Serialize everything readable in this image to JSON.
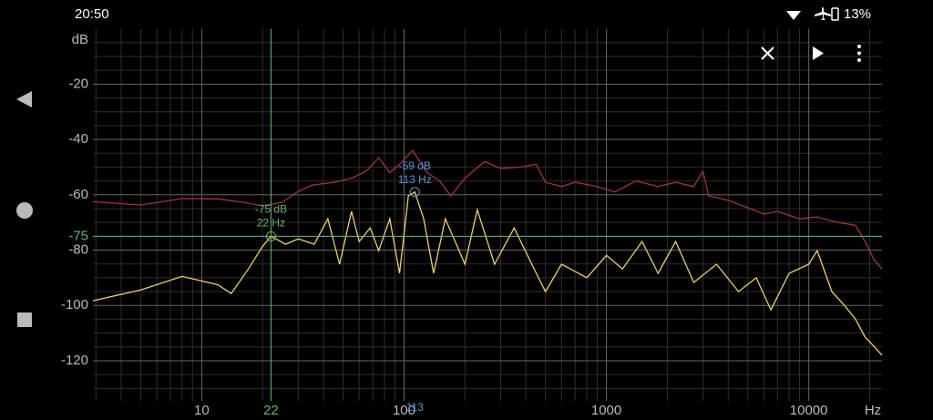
{
  "status_bar": {
    "time": "20:50",
    "battery": "13%"
  },
  "chart_data": {
    "type": "line",
    "log_x": true,
    "grid": true,
    "y_unit": "dB",
    "x_unit": "Hz",
    "xlim": [
      2.9,
      23000
    ],
    "ylim": [
      -134.5,
      0
    ],
    "xticks": [
      10,
      100,
      1000,
      10000
    ],
    "yticks": [
      -20,
      -40,
      -60,
      -80,
      -100,
      -120
    ],
    "xminor": [
      3,
      4,
      5,
      6,
      7,
      8,
      9,
      20,
      30,
      40,
      50,
      60,
      70,
      80,
      90,
      200,
      300,
      400,
      500,
      600,
      700,
      800,
      900,
      2000,
      3000,
      4000,
      5000,
      6000,
      7000,
      8000,
      9000,
      20000
    ],
    "yminor": [
      -5,
      -10,
      -15,
      -25,
      -30,
      -35,
      -45,
      -50,
      -55,
      -65,
      -70,
      -75,
      -85,
      -90,
      -95,
      -105,
      -110,
      -115,
      -125,
      -130
    ],
    "series": [
      {
        "color": "#a8303e",
        "x": [
          2.9,
          5,
          8,
          12,
          16,
          20,
          25,
          30,
          35,
          45,
          55,
          65,
          75,
          85,
          95,
          110,
          130,
          150,
          170,
          200,
          250,
          300,
          380,
          450,
          500,
          600,
          700,
          900,
          1100,
          1400,
          1800,
          2200,
          2700,
          3000,
          3200,
          4000,
          5000,
          6000,
          7000,
          9000,
          11000,
          14000,
          17000,
          19000,
          21000,
          23000
        ],
        "values": [
          -62.5,
          -63.7,
          -61.4,
          -61.5,
          -62.7,
          -64,
          -62.7,
          -58.8,
          -56.5,
          -55.5,
          -54,
          -51.5,
          -46.6,
          -52,
          -49,
          -44,
          -52,
          -55,
          -60.4,
          -54,
          -48,
          -50.5,
          -50,
          -49,
          -55.5,
          -57,
          -55.5,
          -57,
          -59,
          -55,
          -57,
          -55.5,
          -57,
          -51.5,
          -60.4,
          -62,
          -64.7,
          -67,
          -66,
          -68.7,
          -68,
          -70,
          -71,
          -76.9,
          -83.5,
          -86.8
        ]
      },
      {
        "color": "#f0d060",
        "x": [
          2.9,
          5,
          8,
          12,
          14,
          17,
          20,
          22,
          26,
          30,
          36,
          42,
          48,
          55,
          60,
          68,
          75,
          85,
          95,
          105,
          113,
          125,
          140,
          160,
          200,
          230,
          280,
          350,
          450,
          500,
          600,
          800,
          1000,
          1200,
          1500,
          1800,
          2200,
          2700,
          3500,
          4500,
          5500,
          6500,
          8000,
          10000,
          11000,
          13000,
          15000,
          17000,
          19000,
          21000,
          23000
        ],
        "values": [
          -98.3,
          -94.4,
          -89.5,
          -92.5,
          -95.7,
          -86.8,
          -78.6,
          -75,
          -77.9,
          -75.9,
          -77.9,
          -68.7,
          -85.1,
          -66,
          -76.9,
          -72,
          -80.2,
          -68.7,
          -88.4,
          -60.4,
          -59,
          -68.7,
          -88.4,
          -68.7,
          -85.1,
          -65.4,
          -85.1,
          -72,
          -88.4,
          -95,
          -85.1,
          -90,
          -81.9,
          -86.8,
          -76.9,
          -88.4,
          -76.9,
          -91.7,
          -85.1,
          -95,
          -90,
          -101.6,
          -88.4,
          -85.1,
          -80.2,
          -95,
          -100,
          -104.9,
          -111.5,
          -114.8,
          -118
        ]
      }
    ],
    "cursor": {
      "x": 22,
      "y": -75,
      "color": "#62b870",
      "lines": [
        "-75 dB",
        "22 Hz"
      ]
    },
    "peak": {
      "x": 113,
      "y": -59,
      "color": "#5b95d6",
      "lines": [
        "-59 dB",
        "113 Hz"
      ]
    }
  }
}
